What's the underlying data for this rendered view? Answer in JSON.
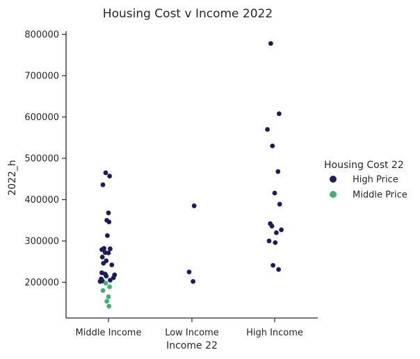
{
  "chart_data": {
    "type": "scatter",
    "title": "Housing Cost v Income 2022",
    "xlabel": "Income 22",
    "ylabel": "2022_h",
    "categories": [
      "Middle Income",
      "Low Income",
      "High Income"
    ],
    "ylim": [
      110000,
      810000
    ],
    "yticks": [
      200000,
      300000,
      400000,
      500000,
      600000,
      700000,
      800000
    ],
    "grid": false,
    "legend": {
      "title": "Housing Cost 22",
      "placement": "right",
      "entries": [
        "High Price",
        "Middle Price"
      ]
    },
    "colors": {
      "High Price": "#1b1b62",
      "Middle Price": "#3cb371"
    },
    "series": [
      {
        "name": "High Price",
        "points": [
          {
            "x": "Middle Income",
            "y": 465000
          },
          {
            "x": "Middle Income",
            "y": 457000
          },
          {
            "x": "Middle Income",
            "y": 436000
          },
          {
            "x": "Middle Income",
            "y": 368000
          },
          {
            "x": "Middle Income",
            "y": 350000
          },
          {
            "x": "Middle Income",
            "y": 346000
          },
          {
            "x": "Middle Income",
            "y": 313000
          },
          {
            "x": "Middle Income",
            "y": 282000
          },
          {
            "x": "Middle Income",
            "y": 281000
          },
          {
            "x": "Middle Income",
            "y": 279000
          },
          {
            "x": "Middle Income",
            "y": 272000
          },
          {
            "x": "Middle Income",
            "y": 271000
          },
          {
            "x": "Middle Income",
            "y": 261000
          },
          {
            "x": "Middle Income",
            "y": 252000
          },
          {
            "x": "Middle Income",
            "y": 246000
          },
          {
            "x": "Middle Income",
            "y": 242000
          },
          {
            "x": "Middle Income",
            "y": 223000
          },
          {
            "x": "Middle Income",
            "y": 220000
          },
          {
            "x": "Middle Income",
            "y": 218000
          },
          {
            "x": "Middle Income",
            "y": 215000
          },
          {
            "x": "Middle Income",
            "y": 211000
          },
          {
            "x": "Middle Income",
            "y": 208000
          },
          {
            "x": "Middle Income",
            "y": 205000
          },
          {
            "x": "Middle Income",
            "y": 203000
          },
          {
            "x": "Middle Income",
            "y": 202000
          },
          {
            "x": "Low Income",
            "y": 385000
          },
          {
            "x": "Low Income",
            "y": 225000
          },
          {
            "x": "Low Income",
            "y": 202000
          },
          {
            "x": "High Income",
            "y": 778000
          },
          {
            "x": "High Income",
            "y": 608000
          },
          {
            "x": "High Income",
            "y": 570000
          },
          {
            "x": "High Income",
            "y": 530000
          },
          {
            "x": "High Income",
            "y": 468000
          },
          {
            "x": "High Income",
            "y": 416000
          },
          {
            "x": "High Income",
            "y": 389000
          },
          {
            "x": "High Income",
            "y": 342000
          },
          {
            "x": "High Income",
            "y": 336000
          },
          {
            "x": "High Income",
            "y": 327000
          },
          {
            "x": "High Income",
            "y": 320000
          },
          {
            "x": "High Income",
            "y": 300000
          },
          {
            "x": "High Income",
            "y": 296000
          },
          {
            "x": "High Income",
            "y": 241000
          },
          {
            "x": "High Income",
            "y": 231000
          }
        ]
      },
      {
        "name": "Middle Price",
        "points": [
          {
            "x": "Middle Income",
            "y": 198000
          },
          {
            "x": "Middle Income",
            "y": 189000
          },
          {
            "x": "Middle Income",
            "y": 180000
          },
          {
            "x": "Middle Income",
            "y": 165000
          },
          {
            "x": "Middle Income",
            "y": 154000
          },
          {
            "x": "Middle Income",
            "y": 142000
          }
        ]
      }
    ]
  }
}
